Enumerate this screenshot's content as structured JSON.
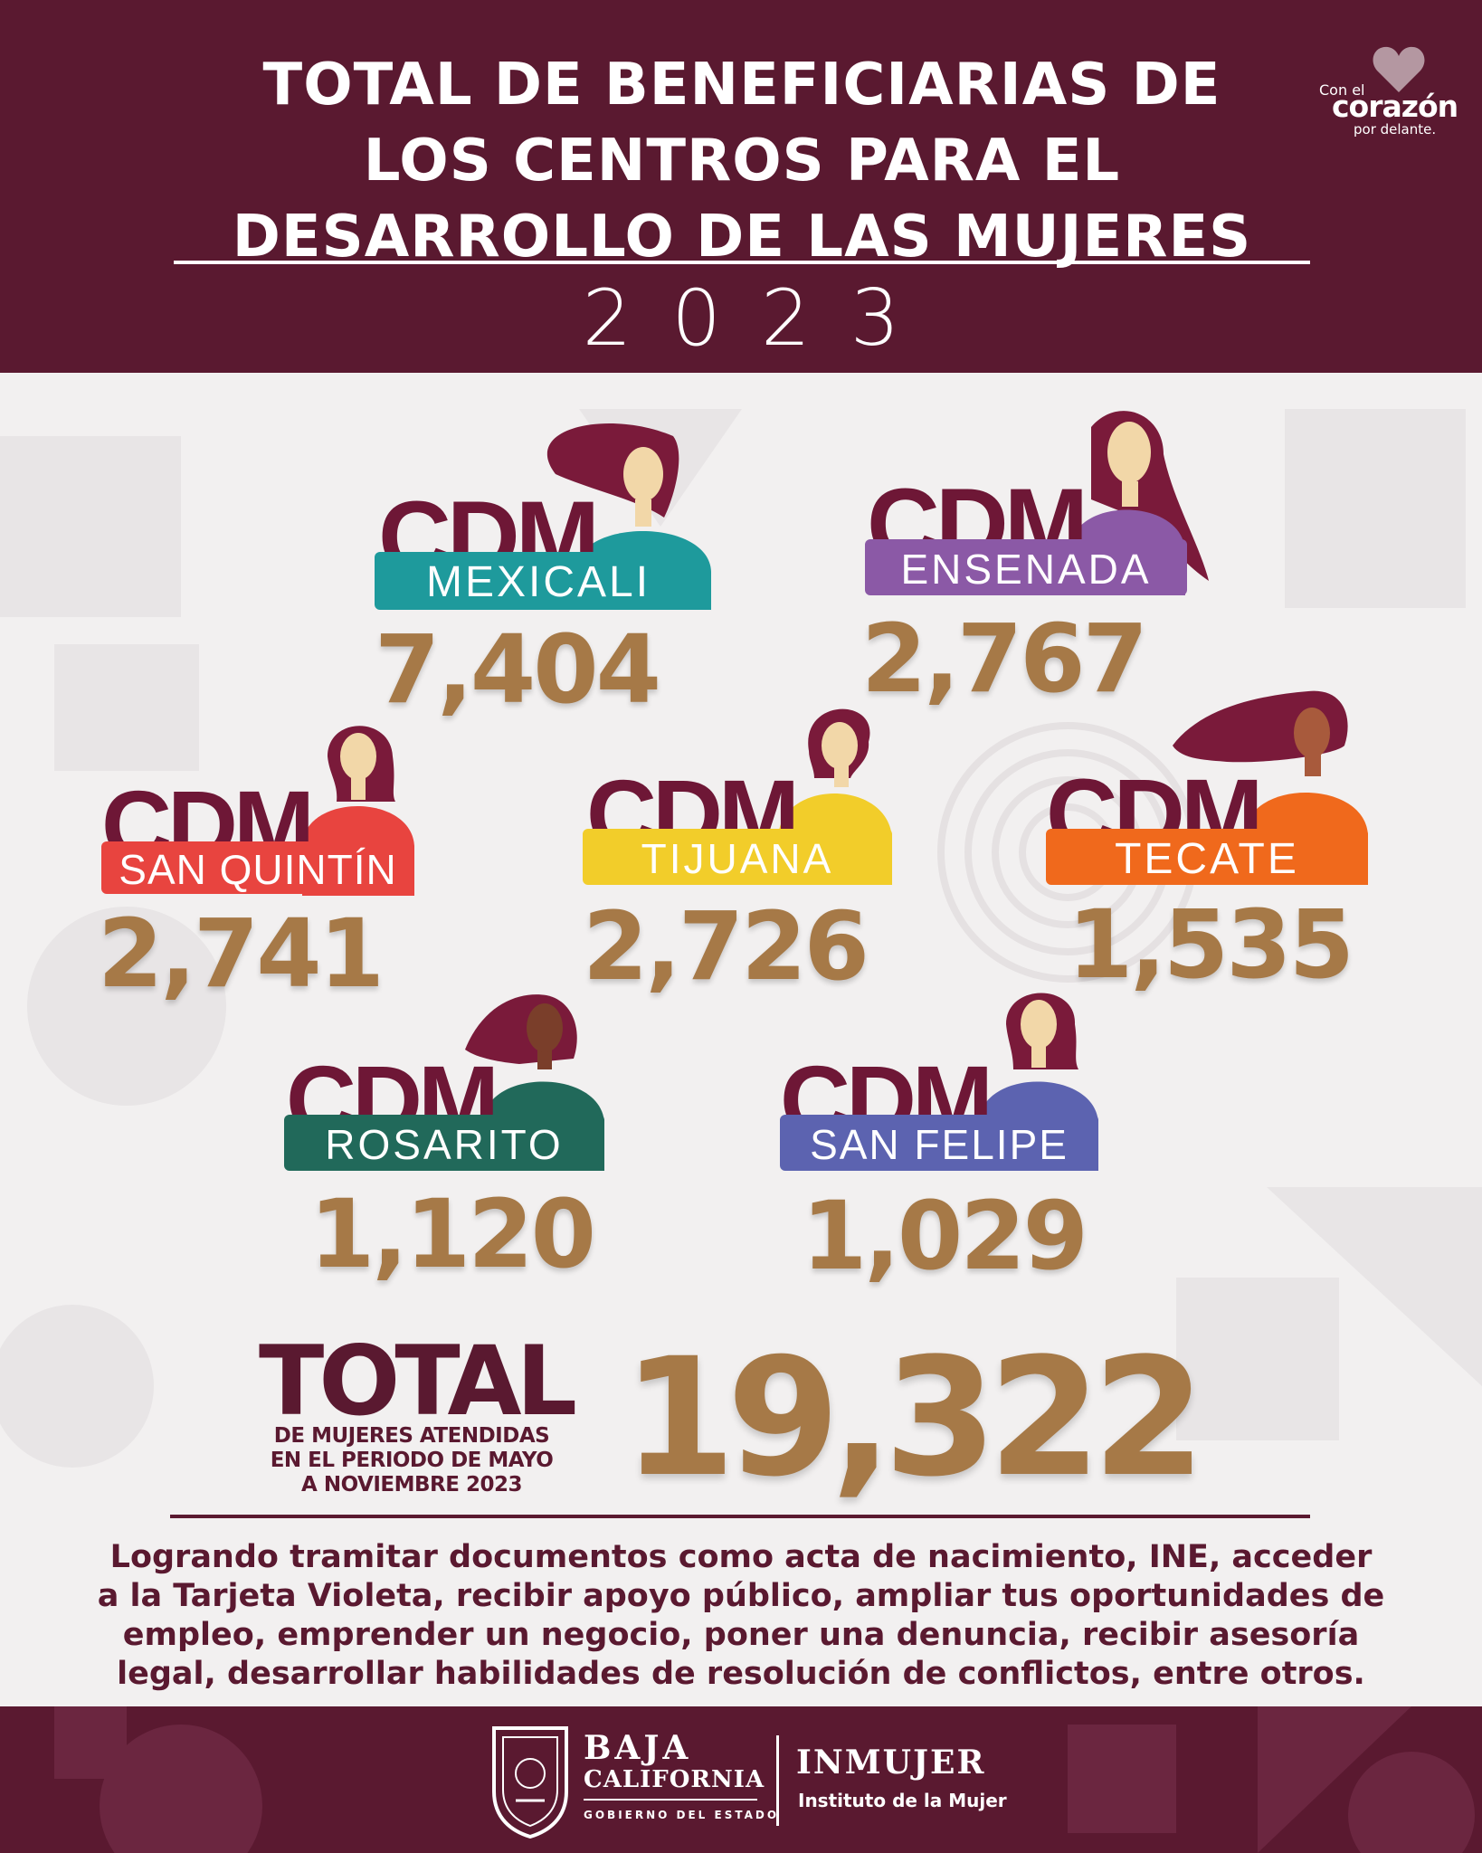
{
  "header": {
    "title_lines": [
      "TOTAL DE BENEFICIARIAS DE",
      "LOS CENTROS PARA EL",
      "DESARROLLO DE LAS MUJERES"
    ],
    "year": "2023",
    "brand": {
      "line1": "Con el",
      "line2": "corazón",
      "line3": "por delante."
    }
  },
  "centers": [
    {
      "prefix": "CDM",
      "name": "MEXICALI",
      "value": "7,404",
      "color": "#1e9a9c"
    },
    {
      "prefix": "CDM",
      "name": "ENSENADA",
      "value": "2,767",
      "color": "#8b59a6"
    },
    {
      "prefix": "CDM",
      "name": "SAN QUINTÍN",
      "value": "2,741",
      "color": "#e8443f"
    },
    {
      "prefix": "CDM",
      "name": "TIJUANA",
      "value": "2,726",
      "color": "#f2cd2a"
    },
    {
      "prefix": "CDM",
      "name": "TECATE",
      "value": "1,535",
      "color": "#f0691c"
    },
    {
      "prefix": "CDM",
      "name": "ROSARITO",
      "value": "1,120",
      "color": "#21695a"
    },
    {
      "prefix": "CDM",
      "name": "SAN FELIPE",
      "value": "1,029",
      "color": "#5c63b0"
    }
  ],
  "total": {
    "label": "TOTAL",
    "sub_lines": [
      "DE MUJERES ATENDIDAS",
      "EN EL PERIODO DE MAYO",
      "A NOVIEMBRE 2023"
    ],
    "value": "19,322"
  },
  "description_lines": [
    "Logrando tramitar documentos como acta de nacimiento, INE, acceder",
    "a la Tarjeta Violeta, recibir apoyo público, ampliar tus oportunidades de",
    "empleo, emprender un negocio, poner una denuncia, recibir asesoría",
    "legal, desarrollar habilidades de resolución de conflictos, entre otros."
  ],
  "footer": {
    "gov_line1": "BAJA",
    "gov_line2": "CALIFORNIA",
    "gov_line3": "GOBIERNO DEL ESTADO",
    "inst_name": "INMUJER",
    "inst_sub": "Instituto de la Mujer"
  },
  "colors": {
    "maroon": "#5a1930",
    "gold": "#a67947",
    "cdm_text": "#6e1736"
  }
}
